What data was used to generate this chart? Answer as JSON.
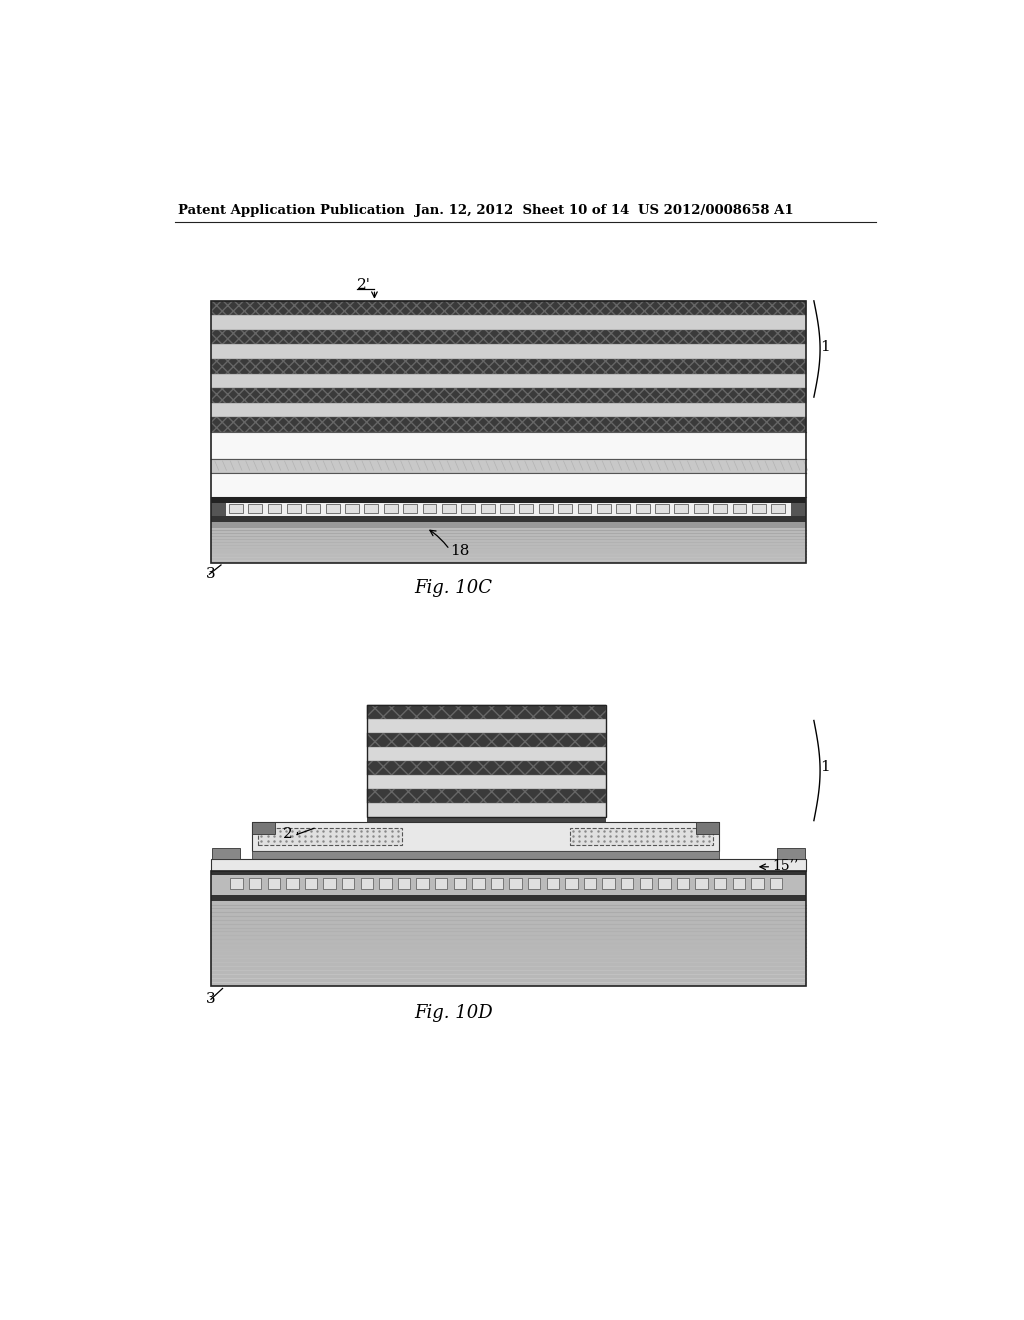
{
  "header_left": "Patent Application Publication",
  "header_mid": "Jan. 12, 2012  Sheet 10 of 14",
  "header_right": "US 2012/0008658 A1",
  "fig_c_label": "Fig. 10C",
  "fig_d_label": "Fig. 10D",
  "label_1": "1",
  "label_2prime": "2'",
  "label_2": "2",
  "label_3": "3",
  "label_18": "18",
  "label_15pp": "15’’",
  "bg_color": "#ffffff"
}
